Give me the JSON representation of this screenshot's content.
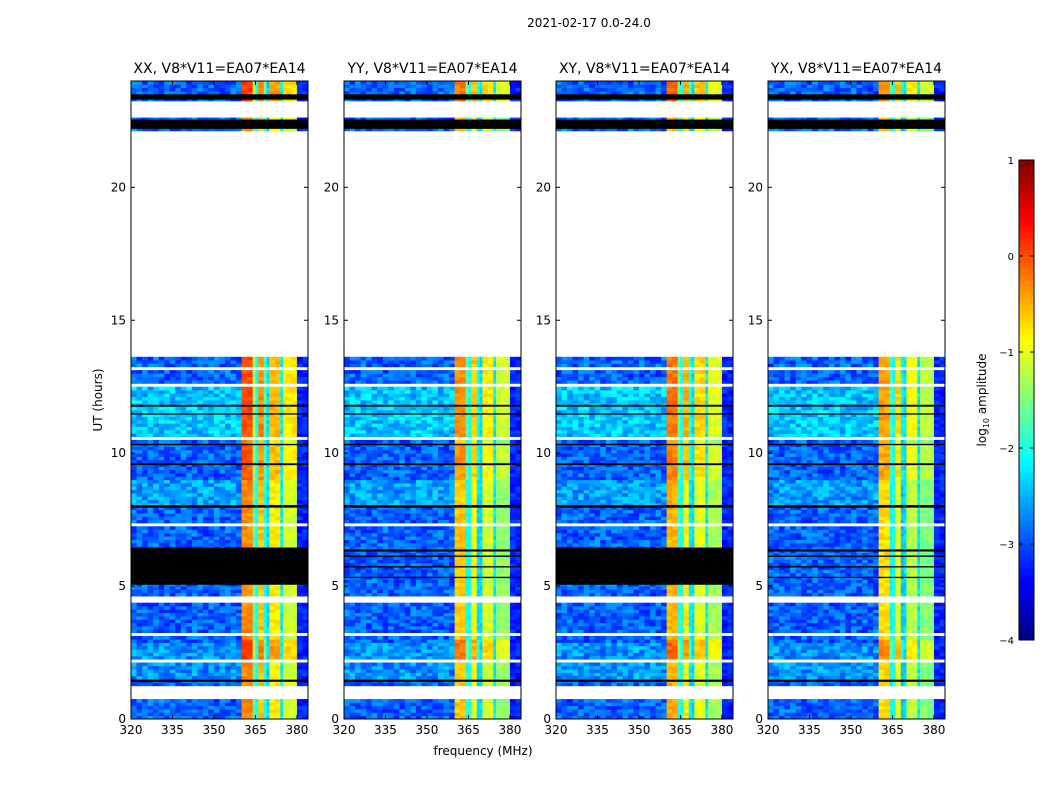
{
  "chart_data": {
    "type": "heatmap",
    "title": "2021-02-17 0.0-24.0",
    "xlabel": "frequency (MHz)",
    "ylabel": "UT (hours)",
    "xlim": [
      320,
      384
    ],
    "ylim": [
      0,
      24
    ],
    "xticks": [
      320,
      335,
      350,
      365,
      380
    ],
    "yticks": [
      0,
      5,
      10,
      15,
      20
    ],
    "colorbar": {
      "label_prefix": "log",
      "label_sub": "10",
      "label_suffix": " amplitude",
      "range": [
        -4,
        1
      ],
      "ticks": [
        -4,
        -3,
        -2,
        -1,
        0,
        1
      ],
      "tick_labels": [
        "−4",
        "−3",
        "−2",
        "−1",
        "0",
        "1"
      ],
      "colormap": "jet"
    },
    "background_level": -2.9,
    "common_flagged_ranges": [
      [
        22.6,
        23.3
      ],
      [
        13.6,
        22.15
      ],
      [
        4.35,
        4.6
      ],
      [
        0.75,
        1.3
      ],
      [
        3.45,
        3.55
      ],
      [
        3.15,
        3.22
      ],
      [
        2.95,
        3.02
      ],
      [
        2.15,
        2.2
      ],
      [
        1.95,
        2.0
      ],
      [
        1.5,
        1.55
      ],
      [
        13.15,
        13.2
      ],
      [
        12.95,
        13.0
      ],
      [
        12.55,
        12.62
      ],
      [
        12.0,
        12.05
      ],
      [
        10.45,
        10.6
      ],
      [
        9.0,
        9.05
      ],
      [
        7.7,
        7.75
      ],
      [
        7.3,
        7.35
      ],
      [
        5.0,
        5.05
      ],
      [
        0.35,
        0.4
      ]
    ],
    "common_zero_ranges": [
      [
        23.3,
        23.5
      ],
      [
        22.2,
        22.55
      ],
      [
        11.75,
        11.82
      ],
      [
        11.45,
        11.5
      ],
      [
        9.55,
        9.62
      ],
      [
        7.95,
        8.05
      ],
      [
        1.4,
        1.48
      ],
      [
        10.3,
        10.35
      ]
    ],
    "panels": [
      {
        "title": "XX, V8*V11=EA07*EA14",
        "extra_zero_ranges": [
          [
            5.05,
            6.45
          ]
        ],
        "rfi_offset": 0.3
      },
      {
        "title": "YY, V8*V11=EA07*EA14",
        "extra_zero_ranges": [
          [
            6.3,
            6.38
          ],
          [
            6.1,
            6.15
          ],
          [
            5.7,
            5.75
          ],
          [
            5.3,
            5.35
          ]
        ],
        "rfi_offset": 0.0
      },
      {
        "title": "XY, V8*V11=EA07*EA14",
        "extra_zero_ranges": [
          [
            5.05,
            6.45
          ]
        ],
        "rfi_offset": 0.1
      },
      {
        "title": "YX, V8*V11=EA07*EA14",
        "extra_zero_ranges": [
          [
            6.3,
            6.38
          ],
          [
            6.1,
            6.15
          ],
          [
            5.7,
            5.75
          ],
          [
            5.3,
            5.35
          ]
        ],
        "rfi_offset": -0.1
      }
    ],
    "rfi_channels": [
      {
        "range": [
          360.5,
          365
        ],
        "level": -0.6
      },
      {
        "range": [
          365,
          366
        ],
        "level": -2.0
      },
      {
        "range": [
          366,
          369
        ],
        "level": -0.9
      },
      {
        "range": [
          369,
          370
        ],
        "level": -2.3
      },
      {
        "range": [
          370,
          374
        ],
        "level": -1.1
      },
      {
        "range": [
          374,
          375
        ],
        "level": -2.2
      },
      {
        "range": [
          375,
          380
        ],
        "level": -1.4
      }
    ],
    "rfi_time_modulation": [
      [
        10.6,
        13.6,
        0.3
      ],
      [
        2.2,
        3.0,
        0.4
      ],
      [
        9.0,
        10.4,
        0.25
      ],
      [
        23.3,
        24,
        0.4
      ]
    ],
    "background_time_modulation": [
      [
        10.6,
        12.5,
        0.5
      ],
      [
        8.0,
        9.0,
        0.3
      ],
      [
        1.55,
        2.9,
        0.25
      ]
    ]
  }
}
